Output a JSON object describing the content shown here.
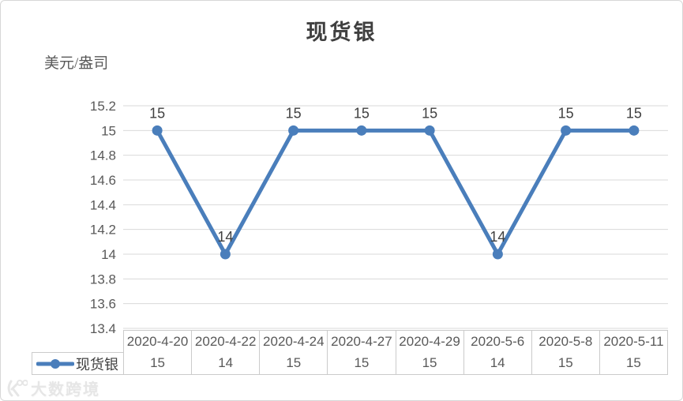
{
  "window": {
    "background": "#ffffff",
    "border_color": "#d7d7d7"
  },
  "chart_data": {
    "type": "line",
    "title": "现货银",
    "unit_label": "美元/盎司",
    "categories": [
      "2020-4-20",
      "2020-4-22",
      "2020-4-24",
      "2020-4-27",
      "2020-4-29",
      "2020-5-6",
      "2020-5-8",
      "2020-5-11"
    ],
    "series": [
      {
        "name": "现货银",
        "values": [
          15,
          14,
          15,
          15,
          15,
          14,
          15,
          15
        ],
        "color": "#4a7ebb"
      }
    ],
    "data_labels": [
      "15",
      "14",
      "15",
      "15",
      "15",
      "14",
      "15",
      "15"
    ],
    "xlabel": "",
    "ylabel": "美元/盎司",
    "ylim": [
      13.4,
      15.2
    ],
    "ytick_step": 0.2,
    "ytick_labels": [
      "15.2",
      "15",
      "14.8",
      "14.6",
      "14.4",
      "14.2",
      "14",
      "13.8",
      "13.6",
      "13.4"
    ],
    "grid": true,
    "gridline_color": "#d9d9d9",
    "tick_color": "#595959",
    "label_color": "#404040",
    "legend_position": "bottom-left-data-table",
    "show_data_table": true
  },
  "watermark": {
    "text": "大数跨境"
  }
}
